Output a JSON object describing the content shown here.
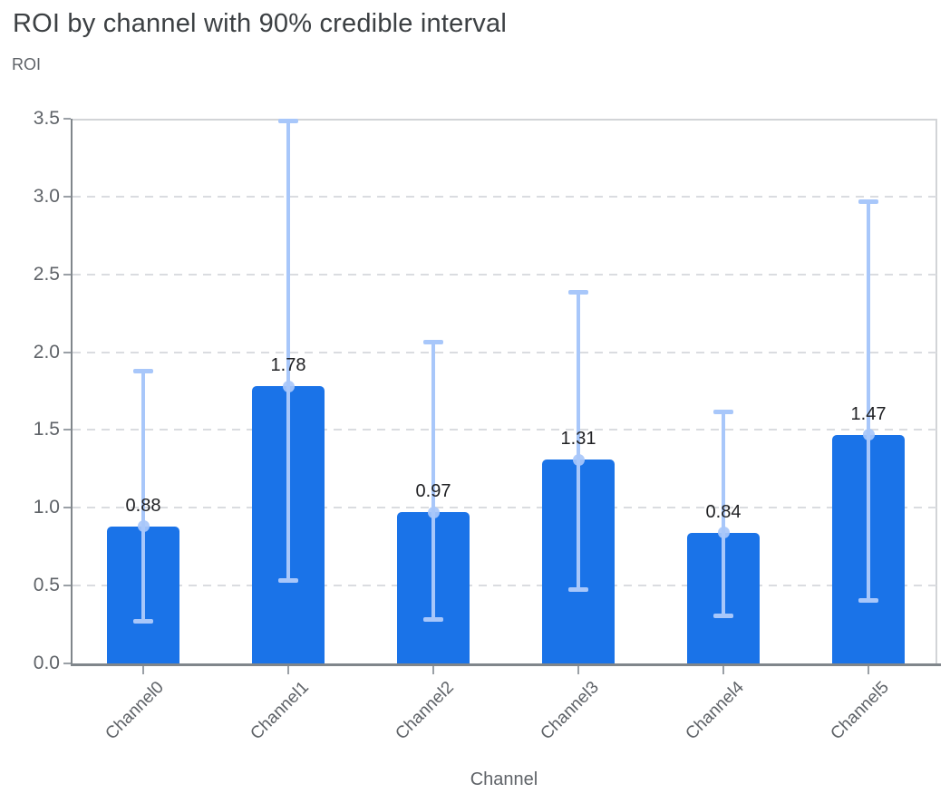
{
  "title": "ROI by channel with 90% credible interval",
  "y_axis_title": "ROI",
  "x_axis_title": "Channel",
  "colors": {
    "bar": "#1A73E8",
    "credible_interval": "#A8C7FA",
    "gridline": "#DADCE0",
    "axis_line": "#80868B",
    "tick_mark": "#9AA0A6",
    "title_text": "#3C4043",
    "muted_text": "#5F6368",
    "value_text": "#202124"
  },
  "chart_data": {
    "type": "bar",
    "title": "ROI by channel with 90% credible interval",
    "xlabel": "Channel",
    "ylabel": "ROI",
    "categories": [
      "Channel0",
      "Channel1",
      "Channel2",
      "Channel3",
      "Channel4",
      "Channel5"
    ],
    "values": [
      0.88,
      1.78,
      0.97,
      1.31,
      0.84,
      1.47
    ],
    "value_labels": [
      "0.88",
      "1.78",
      "0.97",
      "1.31",
      "0.84",
      "1.47"
    ],
    "interval_name": "90% credible interval",
    "error_low": [
      0.27,
      0.53,
      0.28,
      0.47,
      0.3,
      0.4
    ],
    "error_high": [
      1.88,
      3.49,
      2.07,
      2.39,
      1.62,
      2.97
    ],
    "ylim": [
      0,
      3.5
    ],
    "yticks": [
      0.0,
      0.5,
      1.0,
      1.5,
      2.0,
      2.5,
      3.0,
      3.5
    ],
    "ytick_labels": [
      "0.0",
      "0.5",
      "1.0",
      "1.5",
      "2.0",
      "2.5",
      "3.0",
      "3.5"
    ],
    "grid": true,
    "legend": false
  }
}
